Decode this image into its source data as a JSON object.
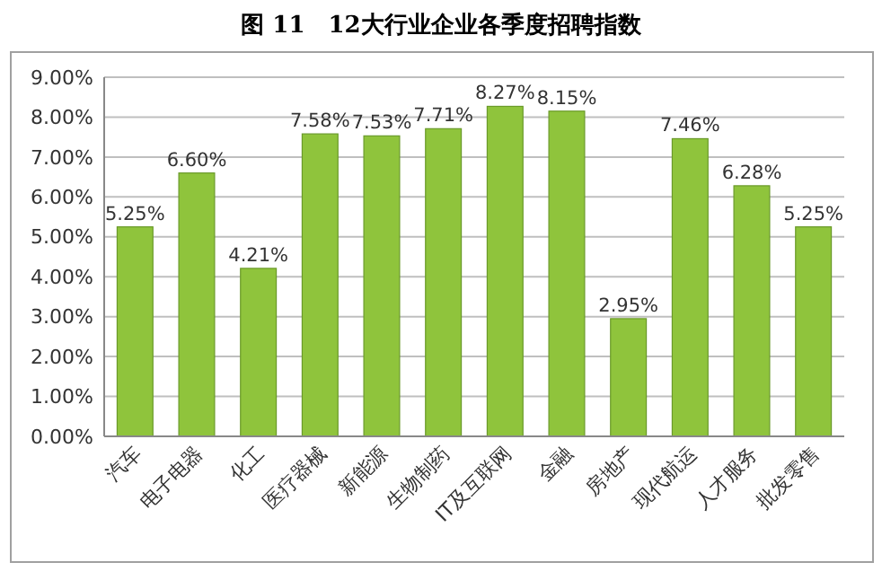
{
  "chart_data": {
    "type": "bar",
    "title": "图 11　12大行业企业各季度招聘指数",
    "categories": [
      "汽车",
      "电子电器",
      "化工",
      "医疗器械",
      "新能源",
      "生物制药",
      "IT及互联网",
      "金融",
      "房地产",
      "现代航运",
      "人才服务",
      "批发零售"
    ],
    "values": [
      5.25,
      6.6,
      4.21,
      7.58,
      7.53,
      7.71,
      8.27,
      8.15,
      2.95,
      7.46,
      6.28,
      5.25
    ],
    "value_labels": [
      "5.25%",
      "6.60%",
      "4.21%",
      "7.58%",
      "7.53%",
      "7.71%",
      "8.27%",
      "8.15%",
      "2.95%",
      "7.46%",
      "6.28%",
      "5.25%"
    ],
    "color": "#8fc43c",
    "ylim": [
      0,
      9
    ],
    "yticks": [
      {
        "value": 0,
        "label": "0.00%"
      },
      {
        "value": 1,
        "label": "1.00%"
      },
      {
        "value": 2,
        "label": "2.00%"
      },
      {
        "value": 3,
        "label": "3.00%"
      },
      {
        "value": 4,
        "label": "4.00%"
      },
      {
        "value": 5,
        "label": "5.00%"
      },
      {
        "value": 6,
        "label": "6.00%"
      },
      {
        "value": 7,
        "label": "7.00%"
      },
      {
        "value": 8,
        "label": "8.00%"
      },
      {
        "value": 9,
        "label": "9.00%"
      }
    ],
    "grid": "y"
  }
}
